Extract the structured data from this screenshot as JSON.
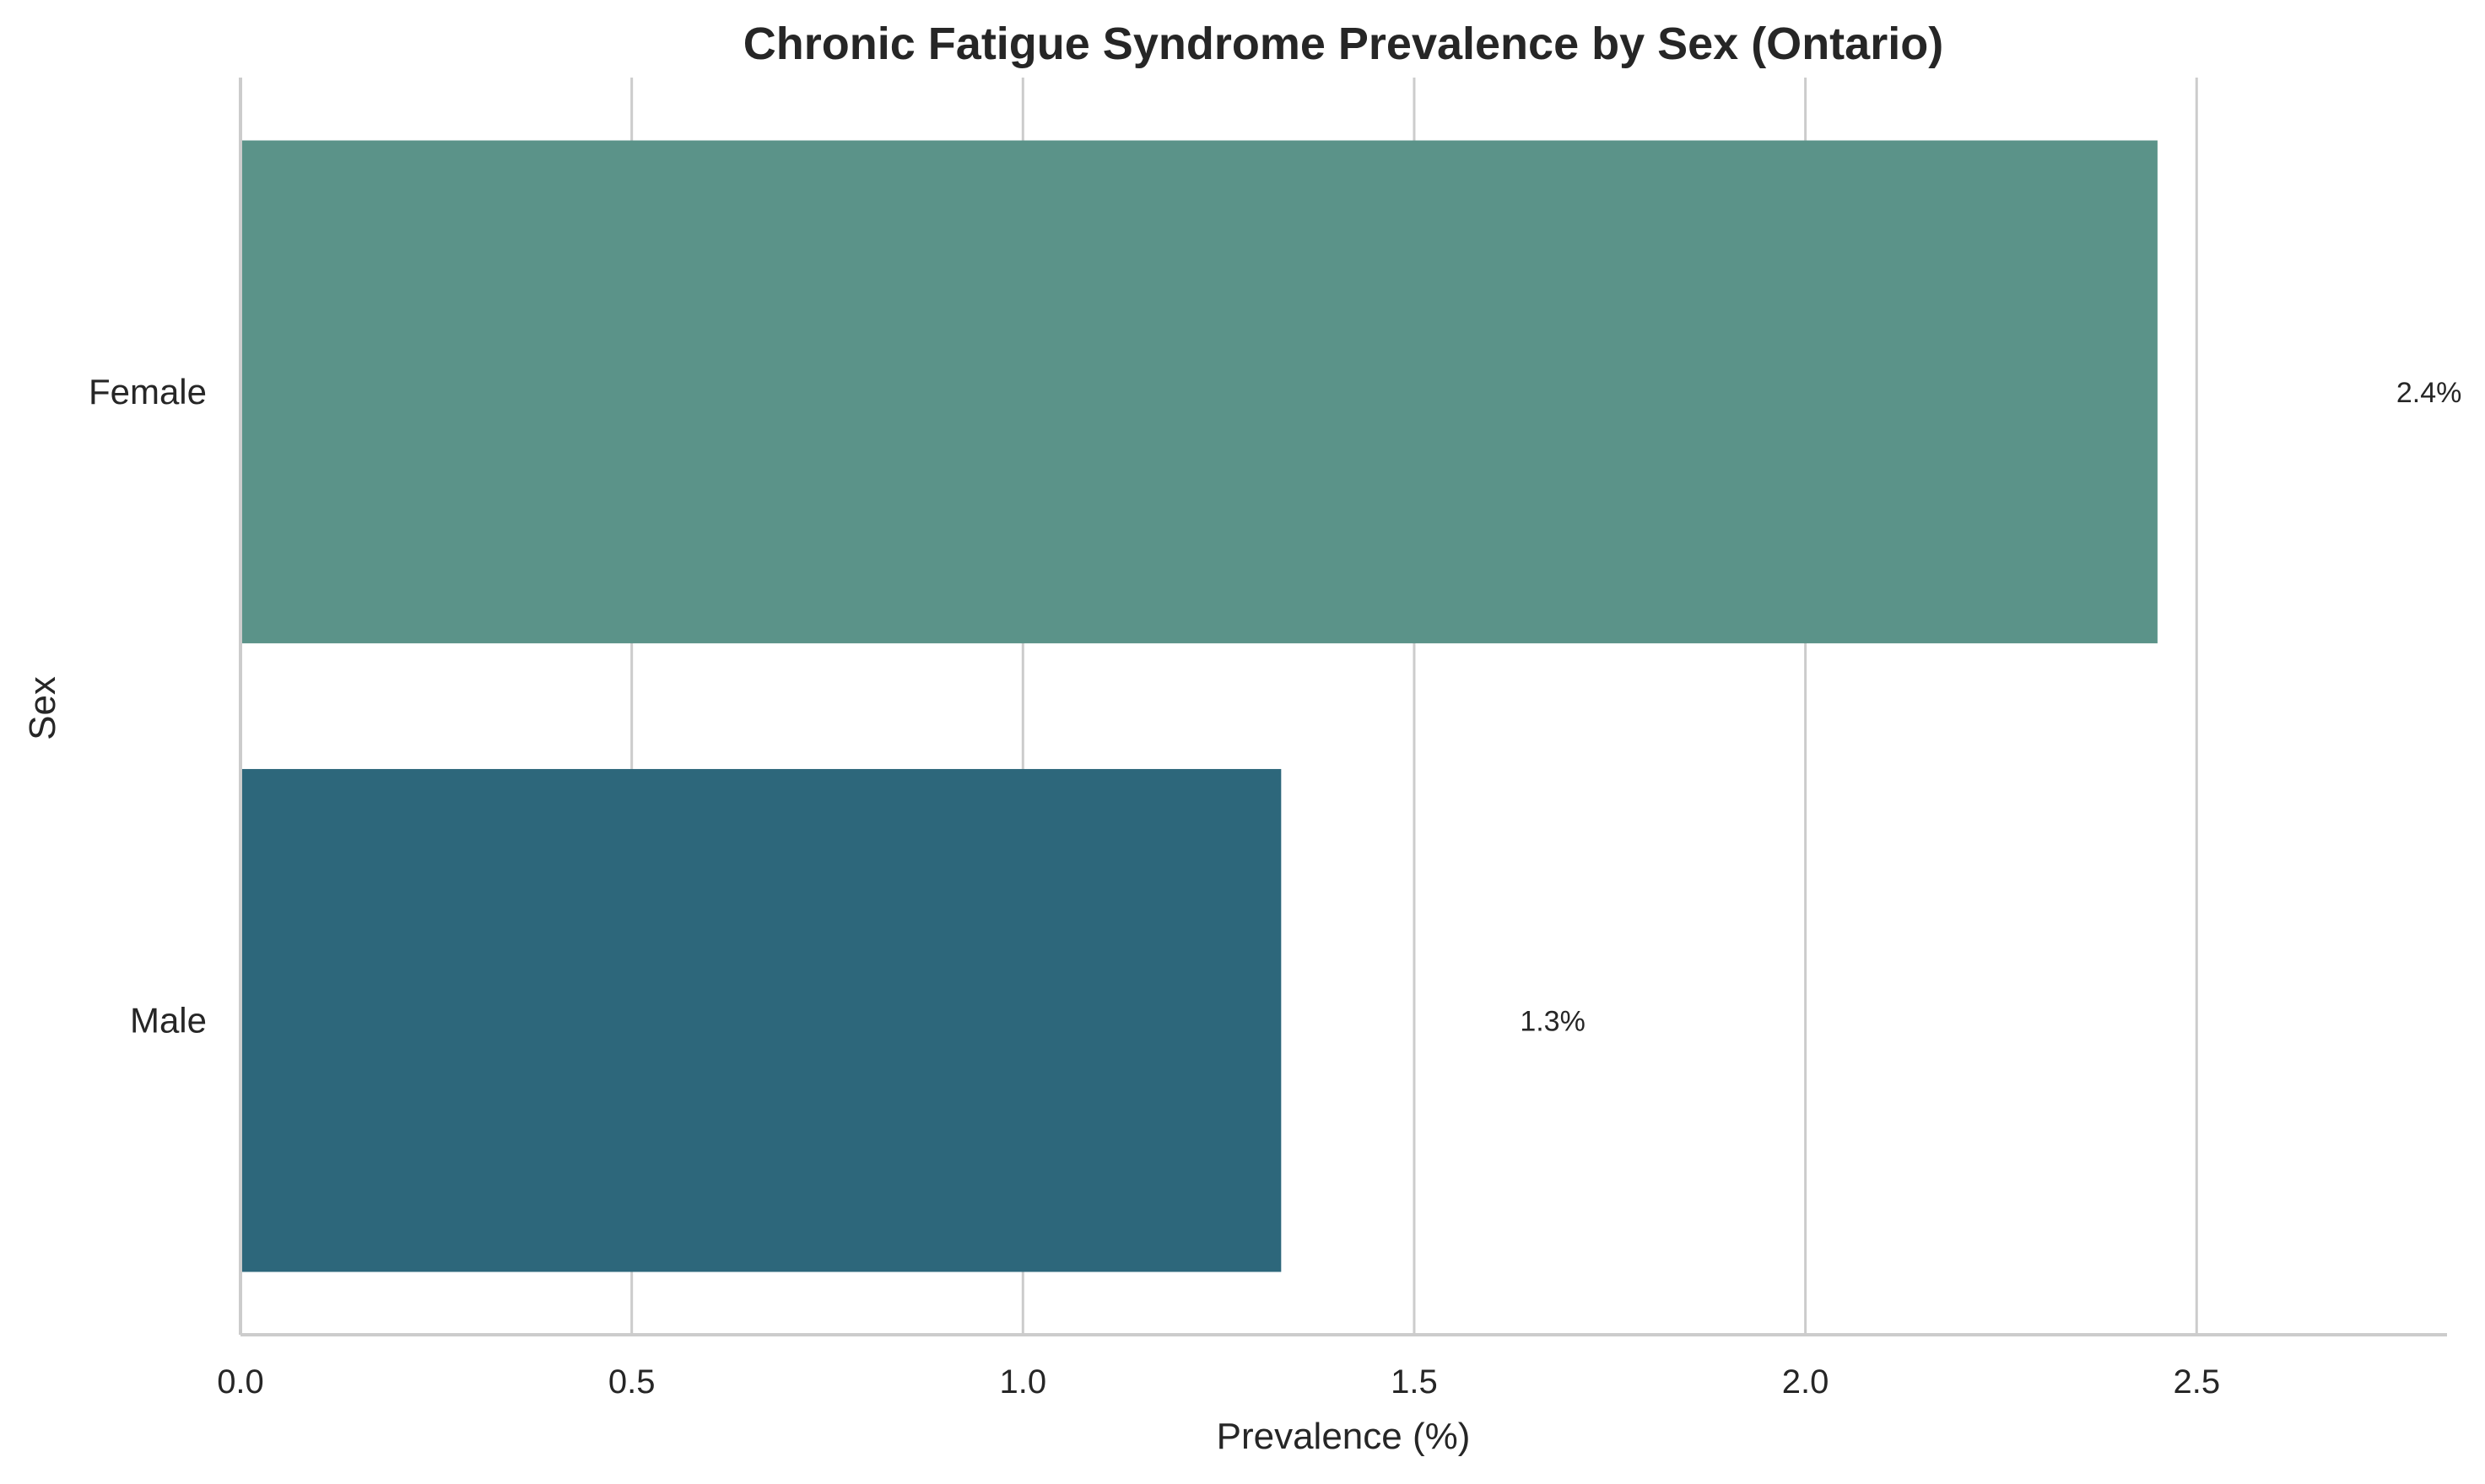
{
  "chart_data": {
    "type": "bar",
    "orientation": "horizontal",
    "title": "Chronic Fatigue Syndrome Prevalence by Sex (Ontario)",
    "xlabel": "Prevalence (%)",
    "ylabel": "Sex",
    "categories": [
      "Female",
      "Male"
    ],
    "values": [
      2.45,
      1.33
    ],
    "value_labels": [
      "2.4%",
      "1.3%"
    ],
    "bar_colors": [
      "#5b9389",
      "#2d677b"
    ],
    "xlim": [
      0,
      2.82
    ],
    "xticks": [
      0.0,
      0.5,
      1.0,
      1.5,
      2.0,
      2.5
    ],
    "xtick_labels": [
      "0.0",
      "0.5",
      "1.0",
      "1.5",
      "2.0",
      "2.5"
    ],
    "grid": "vertical",
    "legend": "none"
  }
}
